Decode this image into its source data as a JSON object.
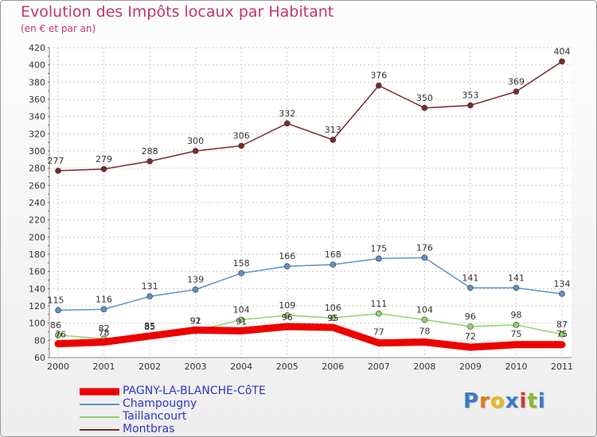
{
  "header": {
    "title": "Evolution des Impôts locaux par Habitant",
    "subtitle": "(en € et par an)"
  },
  "logo": {
    "letters": [
      "P",
      "r",
      "o",
      "x",
      "i",
      "t",
      "i"
    ],
    "colors": [
      "#3b79c9",
      "#e8731a",
      "#e9b81a",
      "#3b79c9",
      "#d23c2c",
      "#8cb92a",
      "#3b79c9"
    ]
  },
  "chart_data": {
    "type": "line",
    "title": "Evolution des Impôts locaux par Habitant",
    "subtitle": "(en € et par an)",
    "xlabel": "",
    "ylabel": "",
    "categories": [
      "2000",
      "2001",
      "2002",
      "2003",
      "2004",
      "2005",
      "2006",
      "2007",
      "2008",
      "2009",
      "2010",
      "2011"
    ],
    "ylim": [
      60,
      420
    ],
    "yticks": [
      60,
      80,
      100,
      120,
      140,
      160,
      180,
      200,
      220,
      240,
      260,
      280,
      300,
      320,
      340,
      360,
      380,
      400,
      420
    ],
    "grid": true,
    "legend_position": "bottom-left",
    "series": [
      {
        "name": "PAGNY-LA-BLANCHE-CôTE",
        "color": "#ee0000",
        "values": [
          76,
          78,
          85,
          92,
          91,
          96,
          95,
          77,
          78,
          72,
          75,
          75
        ]
      },
      {
        "name": "Champougny",
        "color": "#5b93c7",
        "values": [
          115,
          116,
          131,
          139,
          158,
          166,
          168,
          175,
          176,
          141,
          141,
          134
        ]
      },
      {
        "name": "Taillancourt",
        "color": "#90d36a",
        "values": [
          86,
          82,
          85,
          91,
          104,
          109,
          106,
          111,
          104,
          96,
          98,
          87
        ]
      },
      {
        "name": "Montbras",
        "color": "#7b2a2a",
        "values": [
          277,
          279,
          288,
          300,
          306,
          332,
          313,
          376,
          350,
          353,
          369,
          404
        ]
      }
    ]
  }
}
